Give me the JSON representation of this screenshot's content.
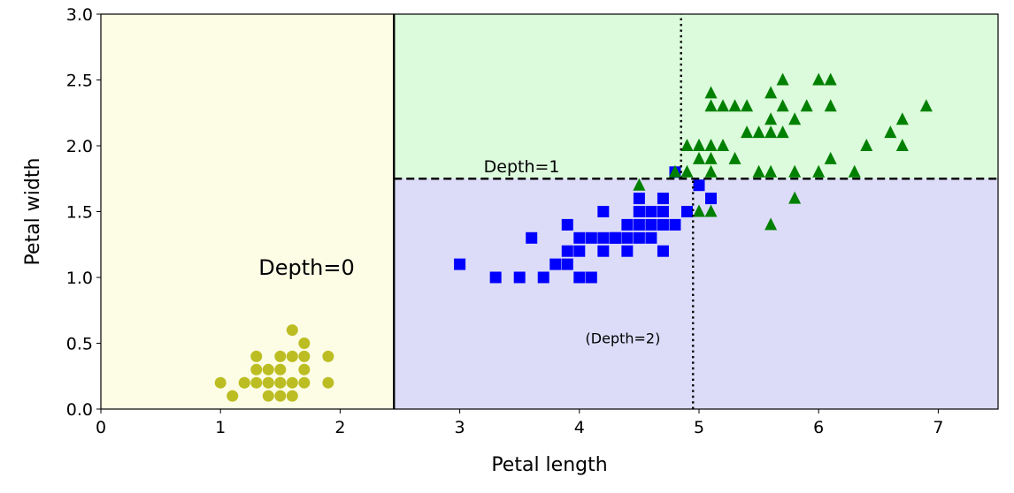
{
  "chart_data": {
    "type": "scatter",
    "xlabel": "Petal length",
    "ylabel": "Petal width",
    "xlim": [
      0,
      7.5
    ],
    "ylim": [
      0,
      3.0
    ],
    "x_ticks": [
      "0",
      "1",
      "2",
      "3",
      "4",
      "5",
      "6",
      "7"
    ],
    "y_ticks": [
      "0.0",
      "0.5",
      "1.0",
      "1.5",
      "2.0",
      "2.5",
      "3.0"
    ],
    "grid": false,
    "regions": [
      {
        "x": [
          0,
          2.45
        ],
        "y": [
          0,
          3.0
        ],
        "color": "#fdfde6"
      },
      {
        "x": [
          2.45,
          7.5
        ],
        "y": [
          1.75,
          3.0
        ],
        "color": "#dcfadc"
      },
      {
        "x": [
          2.45,
          7.5
        ],
        "y": [
          0,
          1.75
        ],
        "color": "#dcdcf9"
      }
    ],
    "boundaries": [
      {
        "style": "solid",
        "x": [
          2.45,
          2.45
        ],
        "y": [
          0,
          3.0
        ]
      },
      {
        "style": "dashed",
        "x": [
          2.45,
          7.5
        ],
        "y": [
          1.75,
          1.75
        ]
      },
      {
        "style": "dotted",
        "x": [
          4.95,
          4.95
        ],
        "y": [
          0,
          1.75
        ]
      },
      {
        "style": "dotted",
        "x": [
          4.85,
          4.85
        ],
        "y": [
          1.75,
          3.0
        ]
      }
    ],
    "annotations": [
      {
        "text": "Depth=0",
        "x": 1.4,
        "y": 1.0
      },
      {
        "text": "Depth=1",
        "x": 3.2,
        "y": 1.8
      },
      {
        "text": "(Depth=2)",
        "x": 4.05,
        "y": 0.5
      }
    ],
    "series": [
      {
        "marker": "circle",
        "color": "#bcbd22",
        "points": [
          [
            1.0,
            0.2
          ],
          [
            1.1,
            0.1
          ],
          [
            1.2,
            0.2
          ],
          [
            1.3,
            0.2
          ],
          [
            1.3,
            0.3
          ],
          [
            1.3,
            0.4
          ],
          [
            1.4,
            0.2
          ],
          [
            1.4,
            0.3
          ],
          [
            1.4,
            0.1
          ],
          [
            1.5,
            0.2
          ],
          [
            1.5,
            0.1
          ],
          [
            1.5,
            0.4
          ],
          [
            1.5,
            0.3
          ],
          [
            1.6,
            0.2
          ],
          [
            1.6,
            0.6
          ],
          [
            1.6,
            0.4
          ],
          [
            1.7,
            0.2
          ],
          [
            1.7,
            0.3
          ],
          [
            1.7,
            0.4
          ],
          [
            1.7,
            0.5
          ],
          [
            1.9,
            0.2
          ],
          [
            1.9,
            0.4
          ],
          [
            1.5,
            0.2
          ],
          [
            1.4,
            0.2
          ],
          [
            1.6,
            0.1
          ],
          [
            1.2,
            0.2
          ]
        ]
      },
      {
        "marker": "square",
        "color": "#0000ff",
        "points": [
          [
            3.0,
            1.1
          ],
          [
            3.3,
            1.0
          ],
          [
            3.5,
            1.0
          ],
          [
            3.6,
            1.3
          ],
          [
            3.7,
            1.0
          ],
          [
            3.8,
            1.1
          ],
          [
            3.9,
            1.1
          ],
          [
            3.9,
            1.4
          ],
          [
            3.9,
            1.2
          ],
          [
            4.0,
            1.0
          ],
          [
            4.0,
            1.3
          ],
          [
            4.0,
            1.2
          ],
          [
            4.1,
            1.0
          ],
          [
            4.1,
            1.3
          ],
          [
            4.2,
            1.3
          ],
          [
            4.2,
            1.5
          ],
          [
            4.2,
            1.2
          ],
          [
            4.3,
            1.3
          ],
          [
            4.4,
            1.4
          ],
          [
            4.4,
            1.3
          ],
          [
            4.4,
            1.2
          ],
          [
            4.5,
            1.5
          ],
          [
            4.5,
            1.3
          ],
          [
            4.5,
            1.6
          ],
          [
            4.6,
            1.3
          ],
          [
            4.6,
            1.4
          ],
          [
            4.6,
            1.5
          ],
          [
            4.7,
            1.4
          ],
          [
            4.7,
            1.2
          ],
          [
            4.7,
            1.5
          ],
          [
            4.8,
            1.8
          ],
          [
            4.8,
            1.4
          ],
          [
            4.9,
            1.5
          ],
          [
            5.0,
            1.7
          ],
          [
            5.1,
            1.6
          ],
          [
            4.5,
            1.5
          ],
          [
            4.7,
            1.6
          ],
          [
            4.3,
            1.3
          ],
          [
            4.5,
            1.4
          ]
        ]
      },
      {
        "marker": "triangle",
        "color": "#008000",
        "points": [
          [
            4.5,
            1.7
          ],
          [
            4.8,
            1.8
          ],
          [
            4.9,
            1.8
          ],
          [
            4.9,
            2.0
          ],
          [
            5.0,
            1.5
          ],
          [
            5.0,
            2.0
          ],
          [
            5.0,
            1.9
          ],
          [
            5.1,
            2.4
          ],
          [
            5.1,
            2.3
          ],
          [
            5.1,
            2.0
          ],
          [
            5.1,
            1.9
          ],
          [
            5.1,
            1.8
          ],
          [
            5.1,
            1.5
          ],
          [
            5.2,
            2.3
          ],
          [
            5.2,
            2.0
          ],
          [
            5.3,
            2.3
          ],
          [
            5.3,
            1.9
          ],
          [
            5.4,
            2.3
          ],
          [
            5.4,
            2.1
          ],
          [
            5.5,
            2.1
          ],
          [
            5.5,
            1.8
          ],
          [
            5.6,
            2.4
          ],
          [
            5.6,
            2.2
          ],
          [
            5.6,
            2.1
          ],
          [
            5.6,
            1.8
          ],
          [
            5.6,
            1.4
          ],
          [
            5.7,
            2.5
          ],
          [
            5.7,
            2.3
          ],
          [
            5.7,
            2.1
          ],
          [
            5.8,
            2.2
          ],
          [
            5.8,
            1.8
          ],
          [
            5.8,
            1.6
          ],
          [
            5.9,
            2.3
          ],
          [
            6.0,
            2.5
          ],
          [
            6.0,
            1.8
          ],
          [
            6.1,
            2.5
          ],
          [
            6.1,
            2.3
          ],
          [
            6.1,
            1.9
          ],
          [
            6.3,
            1.8
          ],
          [
            6.4,
            2.0
          ],
          [
            6.6,
            2.1
          ],
          [
            6.7,
            2.2
          ],
          [
            6.7,
            2.0
          ],
          [
            6.9,
            2.3
          ],
          [
            5.0,
            2.0
          ]
        ]
      }
    ]
  }
}
